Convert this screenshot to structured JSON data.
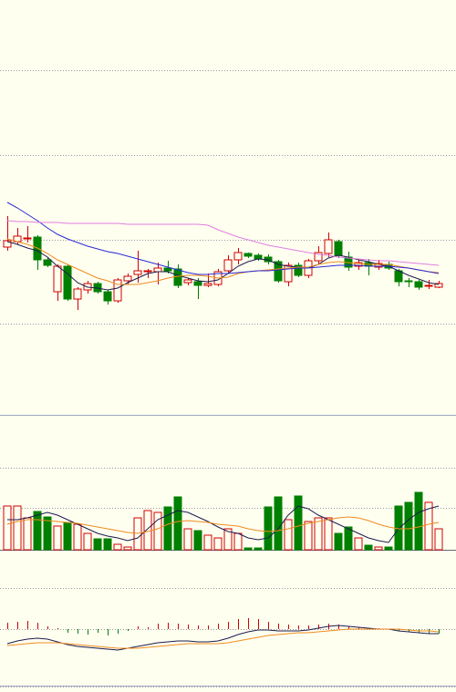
{
  "chart_data": [
    {
      "type": "candlestick",
      "up_color": "#d00000",
      "down_color": "#008000",
      "ylim": [
        0,
        45.5
      ],
      "yticks": [
        10,
        19.2,
        28.5,
        37.8
      ],
      "grid": true,
      "open": [
        18.4,
        19.0,
        19.3,
        19.5,
        17.0,
        13.5,
        16.3,
        12.7,
        13.7,
        14.4,
        13.5,
        12.5,
        14.7,
        15.4,
        15.7,
        15.7,
        16.1,
        16.0,
        14.5,
        14.6,
        14.2,
        14.3,
        15.8,
        17.0,
        17.7,
        17.5,
        17.3,
        16.8,
        14.6,
        16.4,
        15.3,
        16.9,
        17.7,
        19.0,
        17.3,
        16.3,
        16.7,
        16.2,
        16.5,
        15.8,
        14.7,
        14.6,
        14.1,
        14.0
      ],
      "high": [
        21.8,
        20.5,
        20.7,
        19.7,
        17.3,
        16.5,
        16.5,
        14.0,
        14.7,
        14.6,
        13.7,
        15.0,
        15.5,
        18.0,
        16.0,
        16.7,
        16.9,
        16.5,
        15.0,
        15.0,
        15.5,
        16.0,
        17.5,
        18.3,
        17.8,
        17.7,
        17.6,
        17.0,
        16.7,
        16.7,
        17.1,
        18.5,
        20.0,
        19.2,
        17.9,
        17.0,
        17.1,
        17.0,
        16.8,
        16.0,
        15.0,
        14.8,
        14.8,
        14.7
      ],
      "low": [
        18.0,
        18.7,
        18.9,
        15.9,
        16.2,
        12.5,
        12.5,
        11.5,
        13.3,
        13.3,
        12.1,
        12.3,
        14.3,
        14.5,
        15.0,
        14.3,
        15.5,
        13.9,
        14.2,
        12.7,
        14.0,
        14.1,
        15.5,
        16.5,
        17.2,
        16.9,
        16.5,
        14.5,
        14.1,
        15.1,
        15.0,
        16.5,
        17.3,
        17.2,
        15.8,
        15.9,
        15.3,
        15.9,
        15.9,
        14.1,
        14.0,
        13.7,
        13.8,
        13.9
      ],
      "close": [
        19.1,
        19.6,
        19.4,
        17.0,
        16.4,
        16.3,
        12.7,
        13.8,
        14.4,
        13.5,
        12.5,
        14.8,
        15.2,
        15.8,
        15.8,
        16.1,
        15.8,
        14.2,
        14.8,
        14.2,
        14.4,
        15.7,
        17.0,
        17.8,
        17.4,
        17.1,
        16.8,
        14.7,
        16.4,
        15.3,
        16.9,
        17.8,
        19.2,
        17.5,
        16.2,
        16.7,
        16.3,
        16.6,
        16.1,
        14.6,
        14.6,
        14.0,
        14.2,
        14.4
      ],
      "series": [
        {
          "color": "#1c1c50",
          "values": [
            19.0,
            18.7,
            18.3,
            18.0,
            17.3,
            16.3,
            15.5,
            14.5,
            14.0,
            13.9,
            13.7,
            13.9,
            14.5,
            15.0,
            15.5,
            15.7,
            15.7,
            15.3,
            15.0,
            14.7,
            14.6,
            14.8,
            15.5,
            16.3,
            16.8,
            17.1,
            17.0,
            16.5,
            16.3,
            16.2,
            16.1,
            16.5,
            17.2,
            17.5,
            17.3,
            17.0,
            16.8,
            16.5,
            16.3,
            15.8,
            15.3,
            14.9,
            14.5,
            14.3
          ]
        },
        {
          "color": "#f08c1e",
          "values": [
            19.3,
            19.0,
            18.7,
            18.3,
            17.7,
            17.0,
            16.5,
            16.0,
            15.5,
            15.0,
            14.7,
            14.3,
            14.3,
            14.3,
            14.5,
            14.7,
            15.0,
            15.2,
            15.3,
            15.3,
            15.2,
            15.0,
            15.1,
            15.5,
            15.7,
            15.8,
            15.9,
            16.0,
            16.1,
            16.2,
            16.2,
            16.5,
            16.7,
            16.8,
            16.7,
            16.6,
            16.5,
            16.5,
            16.5,
            16.3,
            16.1,
            15.9,
            15.7,
            15.6
          ]
        },
        {
          "color": "#2b2bd6",
          "values": [
            23.3,
            22.7,
            22.0,
            21.3,
            20.5,
            19.8,
            19.3,
            18.9,
            18.5,
            18.2,
            17.9,
            17.7,
            17.4,
            17.1,
            16.8,
            16.5,
            16.2,
            15.9,
            15.6,
            15.4,
            15.4,
            15.5,
            15.5,
            15.6,
            15.7,
            15.8,
            15.8,
            15.9,
            16.0,
            16.1,
            16.1,
            16.2,
            16.3,
            16.4,
            16.4,
            16.4,
            16.3,
            16.3,
            16.3,
            16.2,
            16.1,
            15.9,
            15.7,
            15.5
          ]
        },
        {
          "color": "#e07ee0",
          "values": [
            21.3,
            21.2,
            21.2,
            21.1,
            21.1,
            21.1,
            21.0,
            21.0,
            21.0,
            21.0,
            21.0,
            21.0,
            20.9,
            20.9,
            20.9,
            20.9,
            20.9,
            20.9,
            20.9,
            20.9,
            20.8,
            20.3,
            19.9,
            19.5,
            19.2,
            18.9,
            18.6,
            18.4,
            18.2,
            18.0,
            17.8,
            17.6,
            17.5,
            17.3,
            17.2,
            17.1,
            17.0,
            16.9,
            16.9,
            16.8,
            16.7,
            16.6,
            16.5,
            16.4
          ]
        }
      ]
    },
    {
      "type": "volume",
      "ylim": [
        0,
        14.8
      ],
      "yticks": [
        0,
        4.6,
        9.0
      ],
      "grid": true,
      "values": [
        4.8,
        4.8,
        3.5,
        4.2,
        3.6,
        2.6,
        3.0,
        2.8,
        1.8,
        1.2,
        1.2,
        0.6,
        0.3,
        3.5,
        4.3,
        4.1,
        4.7,
        5.8,
        2.3,
        2.1,
        1.6,
        1.3,
        2.3,
        1.8,
        0.2,
        0.2,
        4.7,
        5.8,
        3.3,
        5.9,
        3.1,
        3.5,
        3.5,
        1.8,
        2.5,
        1.3,
        0.5,
        0.3,
        0.3,
        4.8,
        5.2,
        6.3,
        5.2,
        2.3
      ],
      "series": [
        {
          "color": "#1c1c50",
          "values": [
            3.3,
            3.3,
            3.5,
            3.8,
            4.1,
            3.8,
            3.3,
            2.8,
            2.3,
            1.8,
            1.5,
            1.3,
            1.0,
            1.3,
            2.3,
            3.3,
            3.8,
            4.3,
            4.1,
            3.6,
            3.1,
            2.5,
            2.0,
            1.8,
            1.3,
            1.1,
            1.3,
            2.3,
            3.8,
            4.8,
            4.5,
            3.8,
            3.3,
            2.8,
            2.3,
            1.8,
            1.3,
            1.0,
            0.8,
            2.3,
            3.3,
            4.1,
            4.5,
            4.8
          ]
        },
        {
          "color": "#f08c1e",
          "values": [
            2.8,
            3.1,
            3.3,
            3.3,
            3.2,
            3.1,
            3.0,
            2.9,
            2.7,
            2.5,
            2.3,
            2.1,
            1.9,
            1.8,
            2.0,
            2.3,
            2.8,
            3.1,
            3.2,
            3.1,
            3.0,
            2.8,
            2.7,
            2.6,
            2.3,
            2.1,
            2.0,
            2.1,
            2.3,
            2.6,
            2.9,
            3.1,
            3.3,
            3.5,
            3.6,
            3.5,
            3.2,
            2.8,
            2.5,
            2.3,
            2.3,
            2.5,
            2.8,
            3.0
          ]
        }
      ]
    },
    {
      "type": "macd",
      "ylim": [
        -6.9,
        8.7
      ],
      "yticks": [
        -6.3,
        0,
        4.5
      ],
      "grid": true,
      "up_color": "#d00000",
      "down_color": "#008000",
      "values": [
        0.7,
        0.8,
        0.9,
        0.7,
        0.3,
        0.1,
        -0.4,
        -0.5,
        -0.6,
        -0.4,
        -0.7,
        -0.5,
        -0.2,
        0.3,
        0.2,
        0.6,
        0.7,
        0.6,
        0.5,
        0.4,
        0.4,
        0.6,
        0.8,
        1.1,
        1.2,
        1.1,
        0.8,
        0.6,
        0.5,
        0.4,
        0.4,
        0.5,
        0.6,
        0.5,
        0.3,
        0.2,
        0.1,
        0.1,
        0,
        -0.2,
        -0.3,
        -0.4,
        -0.5,
        -0.5
      ],
      "series": [
        {
          "color": "#1c1c50",
          "values": [
            -1.6,
            -1.3,
            -1.1,
            -1.0,
            -1.1,
            -1.4,
            -1.7,
            -1.9,
            -2.0,
            -2.1,
            -2.2,
            -2.3,
            -2.1,
            -1.9,
            -1.7,
            -1.5,
            -1.4,
            -1.3,
            -1.3,
            -1.4,
            -1.4,
            -1.3,
            -1.0,
            -0.6,
            -0.3,
            -0.1,
            -0.1,
            -0.2,
            -0.2,
            -0.2,
            -0.1,
            0.1,
            0.3,
            0.4,
            0.3,
            0.2,
            0.1,
            0,
            0,
            -0.2,
            -0.3,
            -0.4,
            -0.5,
            -0.5
          ]
        },
        {
          "color": "#f08c1e",
          "values": [
            -1.8,
            -1.7,
            -1.6,
            -1.5,
            -1.5,
            -1.5,
            -1.6,
            -1.7,
            -1.8,
            -1.9,
            -2.0,
            -2.1,
            -2.1,
            -2.1,
            -2.0,
            -1.9,
            -1.8,
            -1.7,
            -1.6,
            -1.6,
            -1.6,
            -1.6,
            -1.5,
            -1.3,
            -1.1,
            -0.9,
            -0.7,
            -0.6,
            -0.5,
            -0.4,
            -0.4,
            -0.3,
            -0.2,
            -0.1,
            0,
            0,
            0,
            0,
            0,
            0,
            -0.1,
            -0.2,
            -0.2,
            -0.3
          ]
        }
      ]
    }
  ]
}
